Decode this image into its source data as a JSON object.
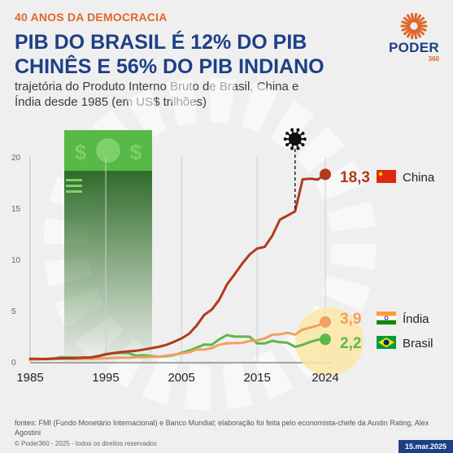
{
  "header": {
    "kicker": "40 ANOS DA DEMOCRACIA",
    "title": "PIB DO BRASIL É 12% DO PIB CHINÊS E 56% DO PIB INDIANO",
    "subtitle": "trajetória do Produto Interno Bruto de Brasil, China e Índia desde 1985 (em US$ trilhões)"
  },
  "logo": {
    "word": "PODER",
    "number": "360"
  },
  "footer": {
    "sources": "fontes: FMI (Fundo Monetário Internacional) e Banco Mundial; elaboração foi feita pelo economista-chefe da Austin Rating, Alex Agostini",
    "copyright": "© Poder360 - 2025 - todos os direitos reservados",
    "date": "15.mar.2025"
  },
  "colors": {
    "china": "#b23a1c",
    "india": "#f0a060",
    "brasil": "#5cb84a",
    "accent": "#e0662a",
    "navy": "#1d3f86"
  },
  "icons": {
    "money": "money-bill-icon",
    "virus": "virus-icon",
    "china_flag": "china-flag-icon",
    "india_flag": "india-flag-icon",
    "brasil_flag": "brazil-flag-icon"
  },
  "chart_data": {
    "type": "line",
    "x": [
      1985,
      1986,
      1987,
      1988,
      1989,
      1990,
      1991,
      1992,
      1993,
      1994,
      1995,
      1996,
      1997,
      1998,
      1999,
      2000,
      2001,
      2002,
      2003,
      2004,
      2005,
      2006,
      2007,
      2008,
      2009,
      2010,
      2011,
      2012,
      2013,
      2014,
      2015,
      2016,
      2017,
      2018,
      2019,
      2020,
      2021,
      2022,
      2023,
      2024
    ],
    "xticks": [
      1985,
      1995,
      2005,
      2015,
      2024
    ],
    "yticks": [
      0,
      5,
      10,
      15,
      20
    ],
    "ylim": [
      0,
      20
    ],
    "xlim": [
      1985,
      2024
    ],
    "grid": false,
    "series": [
      {
        "name": "China",
        "key": "china",
        "end_label": "18,3",
        "values": [
          0.31,
          0.3,
          0.27,
          0.31,
          0.35,
          0.36,
          0.38,
          0.43,
          0.44,
          0.56,
          0.73,
          0.86,
          0.96,
          1.03,
          1.09,
          1.21,
          1.34,
          1.47,
          1.66,
          1.96,
          2.29,
          2.75,
          3.55,
          4.59,
          5.1,
          6.09,
          7.55,
          8.53,
          9.57,
          10.48,
          11.06,
          11.23,
          12.31,
          13.89,
          14.28,
          14.69,
          17.82,
          17.88,
          17.79,
          18.3
        ]
      },
      {
        "name": "Índia",
        "key": "india",
        "end_label": "3,9",
        "values": [
          0.23,
          0.25,
          0.28,
          0.3,
          0.3,
          0.32,
          0.27,
          0.29,
          0.28,
          0.33,
          0.36,
          0.39,
          0.42,
          0.42,
          0.46,
          0.47,
          0.49,
          0.51,
          0.61,
          0.71,
          0.82,
          0.94,
          1.22,
          1.2,
          1.34,
          1.68,
          1.82,
          1.83,
          1.86,
          2.04,
          2.1,
          2.29,
          2.65,
          2.7,
          2.84,
          2.67,
          3.15,
          3.35,
          3.55,
          3.9
        ]
      },
      {
        "name": "Brasil",
        "key": "brasil",
        "end_label": "2,2",
        "values": [
          0.22,
          0.26,
          0.29,
          0.33,
          0.45,
          0.46,
          0.41,
          0.39,
          0.44,
          0.56,
          0.77,
          0.85,
          0.88,
          0.86,
          0.6,
          0.66,
          0.56,
          0.51,
          0.56,
          0.67,
          0.89,
          1.11,
          1.4,
          1.7,
          1.67,
          2.21,
          2.62,
          2.47,
          2.47,
          2.46,
          1.8,
          1.8,
          2.06,
          1.92,
          1.87,
          1.48,
          1.67,
          1.95,
          2.17,
          2.2
        ]
      }
    ]
  }
}
